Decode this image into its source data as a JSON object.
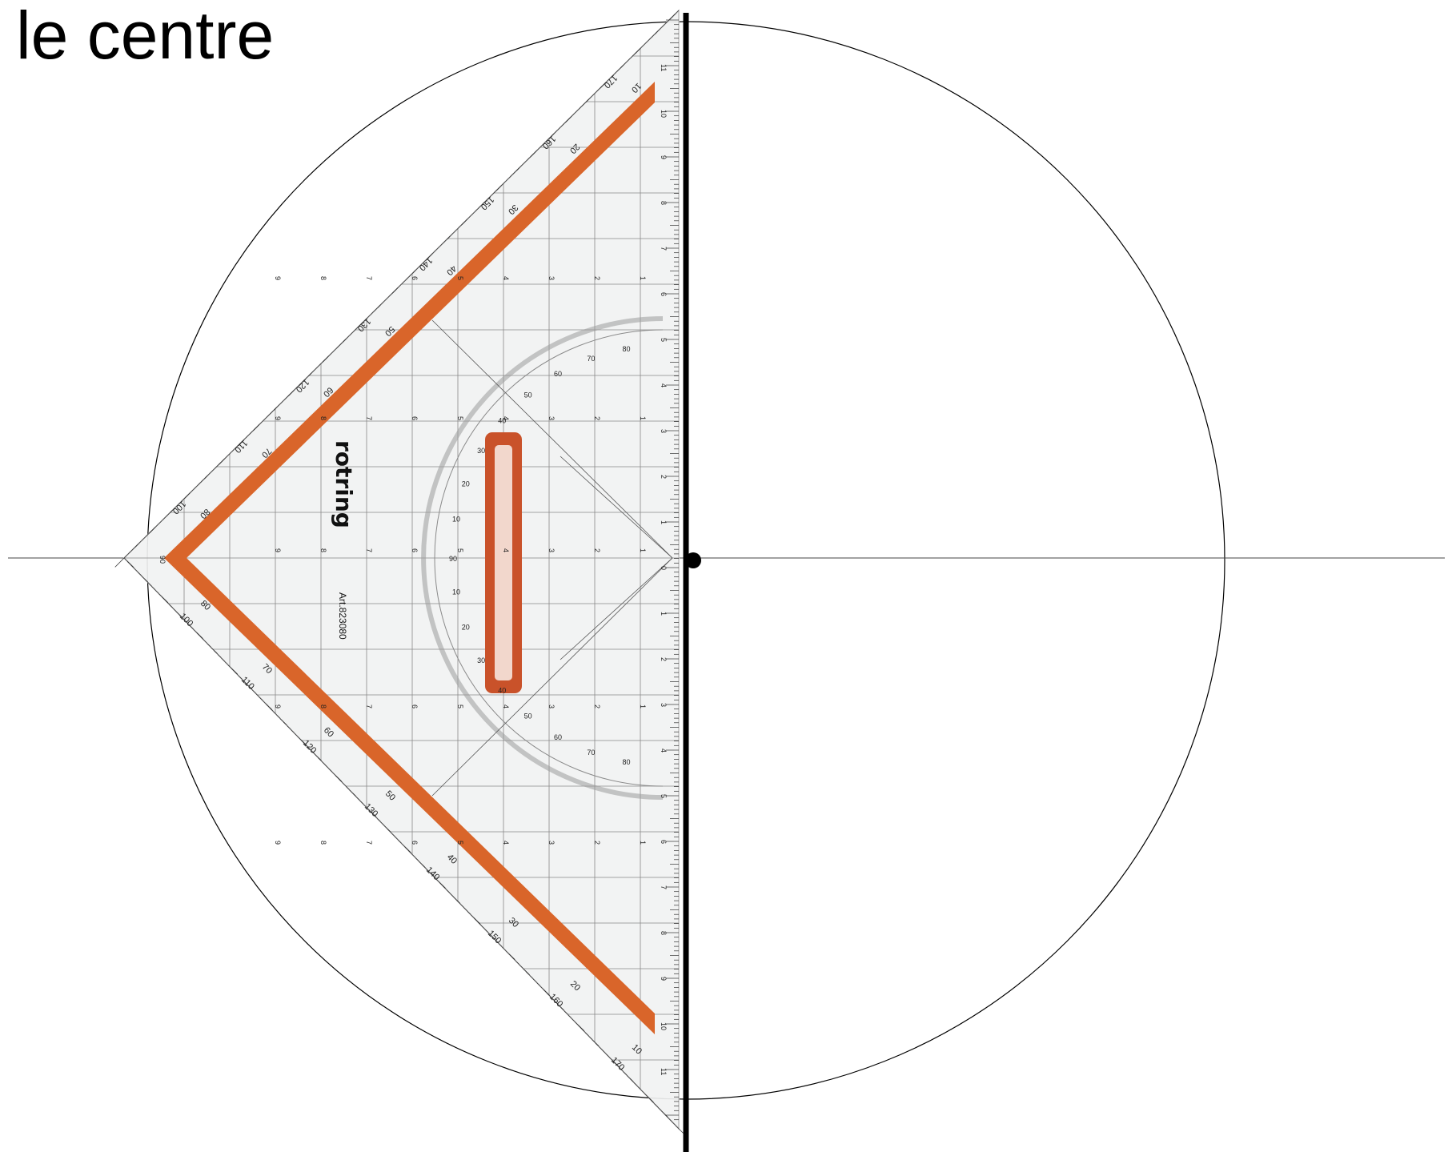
{
  "title": "le centre",
  "set_square": {
    "brand": "rotring",
    "article": "Art.823080",
    "stripe_color": "#d9652a",
    "handle_color": "#c9522a",
    "outer_scale_upper": [
      "100",
      "110",
      "120",
      "130",
      "140",
      "150",
      "160",
      "170"
    ],
    "outer_scale_lower": [
      "100",
      "110",
      "120",
      "130",
      "140",
      "150",
      "160",
      "170"
    ],
    "inner_scale_upper": [
      "80",
      "70",
      "60",
      "50",
      "40",
      "30",
      "20",
      "10"
    ],
    "inner_scale_lower": [
      "80",
      "70",
      "60",
      "50",
      "40",
      "30",
      "20",
      "10"
    ],
    "protractor_upper": [
      "10",
      "20",
      "30",
      "40",
      "50",
      "60",
      "70",
      "80"
    ],
    "protractor_lower": [
      "80",
      "70",
      "60",
      "50",
      "40",
      "30",
      "20",
      "10"
    ],
    "protractor_center": "90",
    "edge_cm_labels": [
      "11",
      "10",
      "9",
      "8",
      "7",
      "6",
      "5",
      "4",
      "3",
      "2",
      "1",
      "0",
      "1",
      "2",
      "3",
      "4",
      "5",
      "6",
      "7",
      "8",
      "9",
      "10",
      "11"
    ],
    "grid_row_labels": [
      "9",
      "8",
      "7",
      "6",
      "5",
      "4",
      "3",
      "2",
      "1"
    ],
    "apex_label": "90"
  },
  "colors": {
    "circle": "#000000",
    "axis": "#444444",
    "thick_line": "#000000",
    "center_point": "#000000"
  }
}
